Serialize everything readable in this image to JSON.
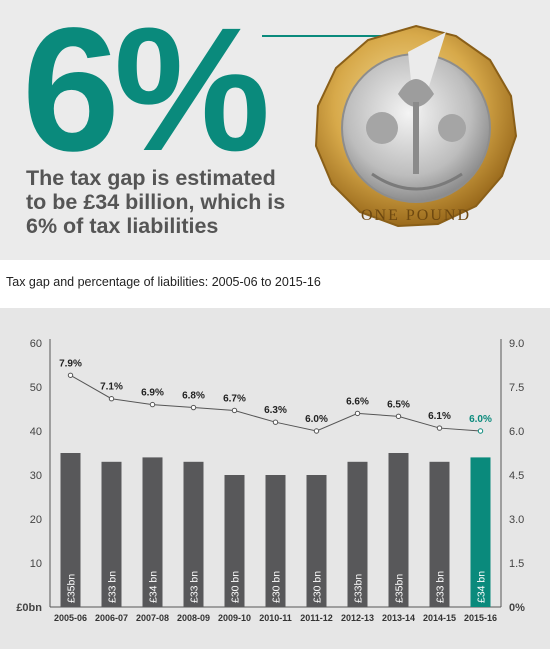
{
  "hero": {
    "big_figure": "6%",
    "headline": "The tax gap is estimated to be £34 billion, which is 6% of tax liabilities",
    "coin_text": "ONE POUND"
  },
  "subtitle": "Tax gap and percentage of liabilities: 2005-06 to 2015-16",
  "colors": {
    "accent": "#0a8a7c",
    "bar": "#58585a",
    "panel": "#e6e6e6",
    "text_grey": "#555555"
  },
  "chart_data": {
    "type": "bar",
    "title": "Tax gap and percentage of liabilities: 2005-06 to 2015-16",
    "categories": [
      "2005-06",
      "2006-07",
      "2007-08",
      "2008-09",
      "2009-10",
      "2010-11",
      "2011-12",
      "2012-13",
      "2013-14",
      "2014-15",
      "2015-16"
    ],
    "series": [
      {
        "name": "",
        "kind": "bar",
        "axis": "left",
        "values": [
          35,
          33,
          34,
          33,
          30,
          30,
          30,
          33,
          35,
          33,
          34
        ],
        "labels": [
          "£35bn",
          "£33 bn",
          "£34 bn",
          "£33 bn",
          "£30 bn",
          "£30 bn",
          "£30 bn",
          "£33bn",
          "£35bn",
          "£33 bn",
          "£34 bn"
        ]
      },
      {
        "name": "",
        "kind": "line",
        "axis": "right",
        "values": [
          7.9,
          7.1,
          6.9,
          6.8,
          6.7,
          6.3,
          6.0,
          6.6,
          6.5,
          6.1,
          6.0
        ],
        "labels": [
          "7.9%",
          "7.1%",
          "6.9%",
          "6.8%",
          "6.7%",
          "6.3%",
          "6.0%",
          "6.6%",
          "6.5%",
          "6.1%",
          "6.0%"
        ]
      }
    ],
    "highlight_index": 10,
    "left_axis": {
      "ylim": [
        0,
        60
      ],
      "ticks": [
        "£0bn",
        "10",
        "20",
        "30",
        "40",
        "50",
        "60"
      ]
    },
    "right_axis": {
      "ylim": [
        0,
        9.0
      ],
      "ticks": [
        "0%",
        "1.5",
        "3.0",
        "4.5",
        "6.0",
        "7.5",
        "9.0"
      ]
    },
    "grid": false,
    "legend": "none"
  }
}
